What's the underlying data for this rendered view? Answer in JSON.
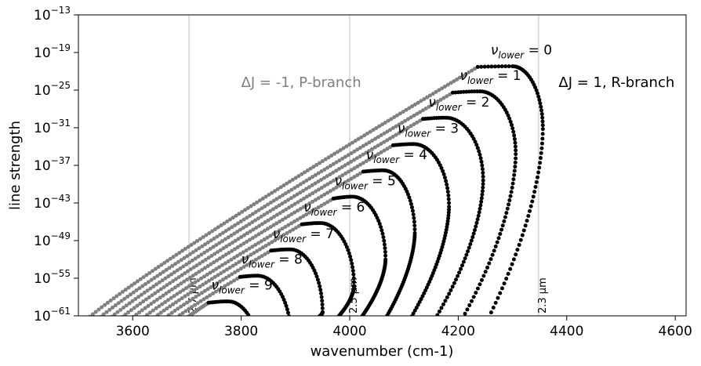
{
  "chart_data": {
    "type": "scatter",
    "xlabel": "wavenumber (cm-1)",
    "ylabel": "line strength",
    "xlim": [
      3500,
      4620
    ],
    "ylim_log10": [
      -61,
      -13
    ],
    "x_ticks": [
      3600,
      3800,
      4000,
      4200,
      4400,
      4600
    ],
    "x_tick_labels": [
      "3600",
      "3800",
      "4000",
      "4200",
      "4400",
      "4600"
    ],
    "y_ticks_log10": [
      -61,
      -55,
      -49,
      -43,
      -37,
      -31,
      -25,
      -19,
      -13
    ],
    "y_tick_labels": [
      {
        "base": "10",
        "exp": "−61"
      },
      {
        "base": "10",
        "exp": "−55"
      },
      {
        "base": "10",
        "exp": "−49"
      },
      {
        "base": "10",
        "exp": "−43"
      },
      {
        "base": "10",
        "exp": "−37"
      },
      {
        "base": "10",
        "exp": "−31"
      },
      {
        "base": "10",
        "exp": "−25"
      },
      {
        "base": "10",
        "exp": "−19"
      },
      {
        "base": "10",
        "exp": "−13"
      }
    ],
    "grid": false,
    "colors": {
      "p_branch": "#808080",
      "r_branch": "#000000",
      "wavelength_lines": "#dddddd"
    },
    "wavelength_markers": [
      {
        "x": 3704,
        "label": "2.7 μm"
      },
      {
        "x": 4000,
        "label": "2.5 μm"
      },
      {
        "x": 4348,
        "label": "2.3 μm"
      }
    ],
    "annotations": [
      {
        "text": "ΔJ = -1, P-branch",
        "x": 3800,
        "y_log10": -24.5
      },
      {
        "text": "ΔJ = 1, R-branch",
        "x": 4385,
        "y_log10": -24.5
      }
    ],
    "band_label_prefix": "ν",
    "band_label_subscript": "lower",
    "band_label_suffix": " = ",
    "series": [
      {
        "v_lower": 0,
        "label_x": 4260,
        "label_y_log10": -19.3,
        "p_start": [
          3510,
          -62
        ],
        "join": [
          4236,
          -21.3
        ],
        "r_peak": [
          4300,
          -21.2
        ],
        "r_max_x": 4356,
        "r_end": [
          4252,
          -62
        ]
      },
      {
        "v_lower": 1,
        "label_x": 4203,
        "label_y_log10": -23.4,
        "p_start": [
          3530,
          -62
        ],
        "join": [
          4190,
          -25.4
        ],
        "r_peak": [
          4240,
          -25.2
        ],
        "r_max_x": 4306,
        "r_end": [
          4204,
          -62
        ]
      },
      {
        "v_lower": 2,
        "label_x": 4145,
        "label_y_log10": -27.6,
        "p_start": [
          3550,
          -62
        ],
        "join": [
          4135,
          -29.6
        ],
        "r_peak": [
          4177,
          -29.4
        ],
        "r_max_x": 4246,
        "r_end": [
          4154,
          -62
        ]
      },
      {
        "v_lower": 3,
        "label_x": 4088,
        "label_y_log10": -31.8,
        "p_start": [
          3570,
          -62
        ],
        "join": [
          4080,
          -33.8
        ],
        "r_peak": [
          4118,
          -33.6
        ],
        "r_max_x": 4183,
        "r_end": [
          4108,
          -62
        ]
      },
      {
        "v_lower": 4,
        "label_x": 4030,
        "label_y_log10": -36.0,
        "p_start": [
          3590,
          -62
        ],
        "join": [
          4025,
          -38.0
        ],
        "r_peak": [
          4062,
          -37.8
        ],
        "r_max_x": 4120,
        "r_end": [
          4062,
          -62
        ]
      },
      {
        "v_lower": 5,
        "label_x": 3972,
        "label_y_log10": -40.2,
        "p_start": [
          3610,
          -62
        ],
        "join": [
          3970,
          -42.3
        ],
        "r_peak": [
          4005,
          -42.0
        ],
        "r_max_x": 4066,
        "r_end": [
          4015,
          -62
        ]
      },
      {
        "v_lower": 6,
        "label_x": 3915,
        "label_y_log10": -44.4,
        "p_start": [
          3630,
          -62
        ],
        "join": [
          3912,
          -46.4
        ],
        "r_peak": [
          3946,
          -46.2
        ],
        "r_max_x": 4008,
        "r_end": [
          3970,
          -62
        ]
      },
      {
        "v_lower": 7,
        "label_x": 3858,
        "label_y_log10": -48.6,
        "p_start": [
          3650,
          -62
        ],
        "join": [
          3855,
          -50.6
        ],
        "r_peak": [
          3890,
          -50.4
        ],
        "r_max_x": 3950,
        "r_end": [
          3926,
          -62
        ]
      },
      {
        "v_lower": 8,
        "label_x": 3800,
        "label_y_log10": -52.7,
        "p_start": [
          3670,
          -62
        ],
        "join": [
          3798,
          -54.8
        ],
        "r_peak": [
          3830,
          -54.6
        ],
        "r_max_x": 3892,
        "r_end": [
          3880,
          -62
        ]
      },
      {
        "v_lower": 9,
        "label_x": 3745,
        "label_y_log10": -56.8,
        "p_start": [
          3690,
          -62
        ],
        "join": [
          3740,
          -58.9
        ],
        "r_peak": [
          3776,
          -58.7
        ],
        "r_max_x": 3836,
        "r_end": [
          3834,
          -62
        ]
      }
    ]
  }
}
